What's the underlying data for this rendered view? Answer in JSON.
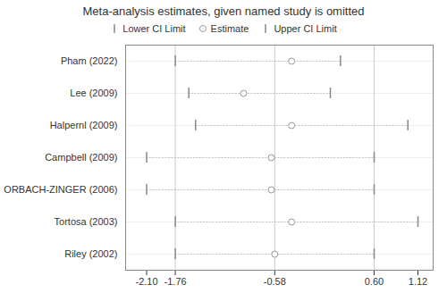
{
  "chart_data": {
    "type": "forest",
    "title": "Meta-analysis estimates, given named study is omitted",
    "orientation": "horizontal",
    "categories": [
      "Pham (2022)",
      "Lee (2009)",
      "Halpernl (2009)",
      "Campbell (2009)",
      "ORBACH-ZINGER (2006)",
      "Tortosa (2003)",
      "Riley (2002)"
    ],
    "series": [
      {
        "name": "Lower CI Limit",
        "color": "#888888",
        "marker": "|",
        "values": [
          -1.76,
          -1.6,
          -1.52,
          -2.1,
          -2.1,
          -1.76,
          -1.76
        ]
      },
      {
        "name": "Estimate",
        "color": "#999999",
        "marker": "o",
        "values": [
          -0.38,
          -0.95,
          -0.38,
          -0.62,
          -0.62,
          -0.38,
          -0.58
        ]
      },
      {
        "name": "Upper CI Limit",
        "color": "#888888",
        "marker": "|",
        "values": [
          0.2,
          0.08,
          1.0,
          0.6,
          0.6,
          1.12,
          0.6
        ]
      }
    ],
    "color": "#bbbbbb",
    "line_style": "dotted",
    "reference_lines": [
      -1.76,
      -0.58,
      0.6
    ],
    "xlim": [
      -2.35,
      1.3
    ],
    "xticks": [
      {
        "value": -2.1,
        "label": "-2.10"
      },
      -1.76,
      -0.58,
      {
        "value": 0.6,
        "label": "0.60"
      },
      1.12
    ],
    "grid": "y",
    "legend": "top"
  }
}
